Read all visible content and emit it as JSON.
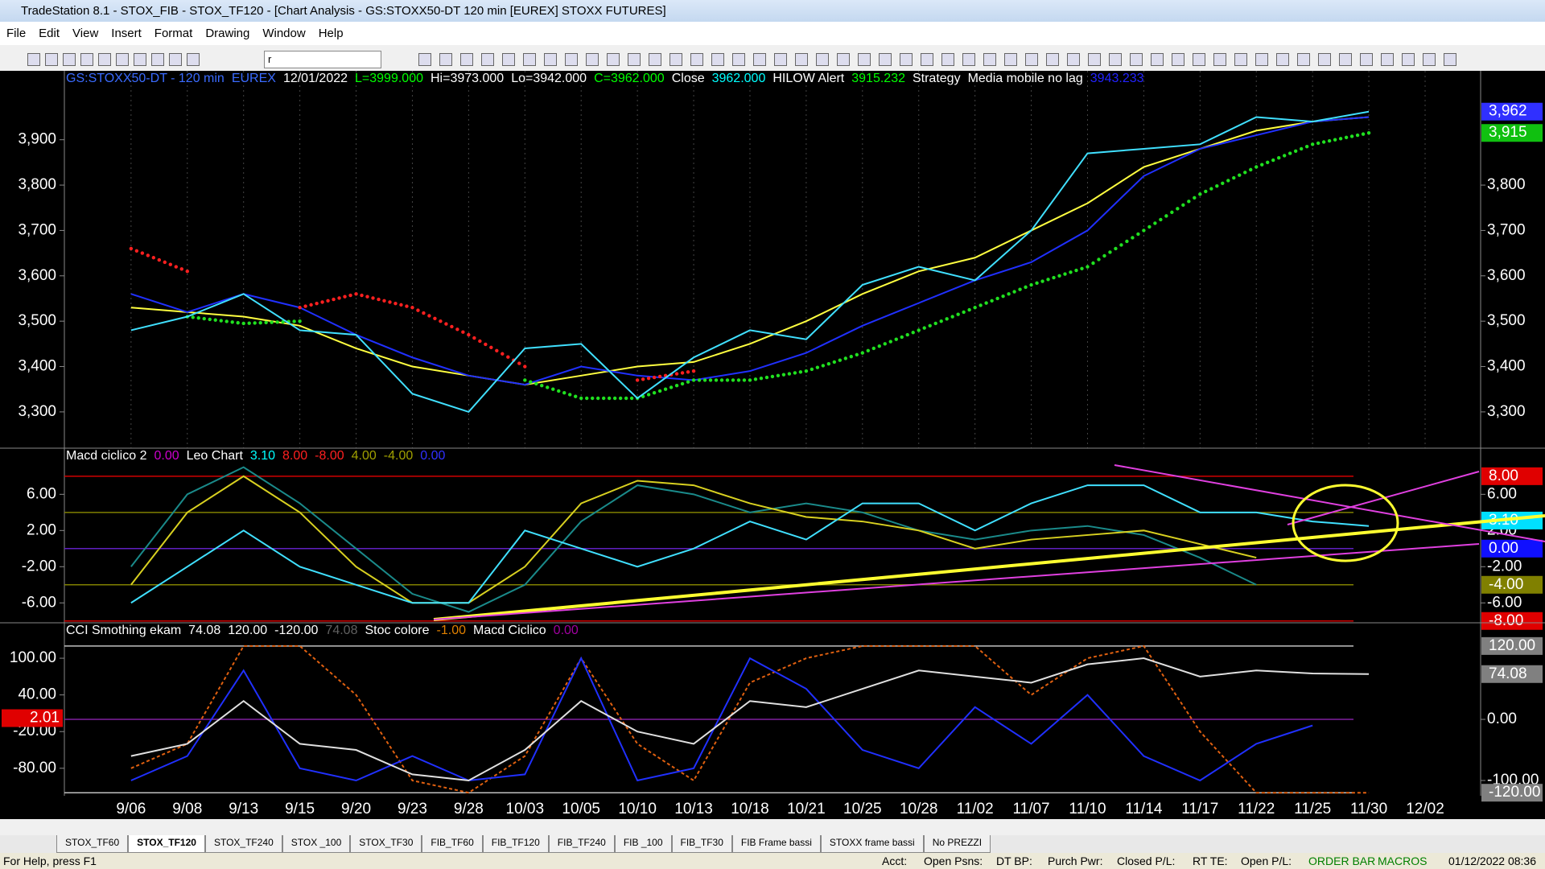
{
  "window": {
    "title": "TradeStation 8.1 - STOX_FIB - STOX_TF120 - [Chart Analysis - GS:STOXX50-DT  120 min  [EUREX] STOXX FUTURES]",
    "menu": [
      "File",
      "Edit",
      "View",
      "Insert",
      "Format",
      "Drawing",
      "Window",
      "Help"
    ],
    "symbol_box": "r"
  },
  "chart": {
    "categories": [
      "9/06",
      "9/08",
      "9/13",
      "9/15",
      "9/20",
      "9/23",
      "9/28",
      "10/03",
      "10/05",
      "10/10",
      "10/13",
      "10/18",
      "10/21",
      "10/25",
      "10/28",
      "11/02",
      "11/07",
      "11/10",
      "11/14",
      "11/17",
      "11/22",
      "11/25",
      "11/30",
      "12/02"
    ],
    "panels": [
      {
        "header": [
          {
            "text": "GS:STOXX50-DT - 120 min",
            "color": "#3a6bff"
          },
          {
            "text": "EUREX",
            "color": "#3a6bff"
          },
          {
            "text": "12/01/2022",
            "color": "#ffffff"
          },
          {
            "text": "L=3999.000",
            "color": "#00ff00"
          },
          {
            "text": "Hi=3973.000",
            "color": "#ffffff"
          },
          {
            "text": "Lo=3942.000",
            "color": "#ffffff"
          },
          {
            "text": "C=3962.000",
            "color": "#00ff00"
          },
          {
            "text": "Close",
            "color": "#ffffff"
          },
          {
            "text": "3962.000",
            "color": "#00ffff"
          },
          {
            "text": "HILOW Alert",
            "color": "#ffffff"
          },
          {
            "text": "3915.232",
            "color": "#00ff00"
          },
          {
            "text": "Strategy",
            "color": "#ffffff"
          },
          {
            "text": "Media mobile no lag",
            "color": "#ffffff"
          },
          {
            "text": "3943.233",
            "color": "#2222ff"
          }
        ],
        "ylim": [
          3220,
          4052
        ],
        "yticks": [
          {
            "value": 3300,
            "label": "3,300"
          },
          {
            "value": 3400,
            "label": "3,400"
          },
          {
            "value": 3500,
            "label": "3,500"
          },
          {
            "value": 3600,
            "label": "3,600"
          },
          {
            "value": 3700,
            "label": "3,700"
          },
          {
            "value": 3800,
            "label": "3,800"
          },
          {
            "value": 3900,
            "label": "3,900"
          }
        ],
        "y2ticks": [
          {
            "value": 3300,
            "label": "3,300"
          },
          {
            "value": 3400,
            "label": "3,400"
          },
          {
            "value": 3500,
            "label": "3,500"
          },
          {
            "value": 3600,
            "label": "3,600"
          },
          {
            "value": 3700,
            "label": "3,700"
          },
          {
            "value": 3800,
            "label": "3,800"
          }
        ],
        "tags": [
          {
            "value": 3962,
            "label": "3,962",
            "color": "#3030ff",
            "side": "right"
          },
          {
            "value": 3915,
            "label": "3,915",
            "color": "#10c010",
            "side": "right"
          }
        ],
        "levels": [],
        "series": [
          {
            "color": "#ffff40",
            "style": "line",
            "values": [
              3530,
              3520,
              3510,
              3490,
              3440,
              3400,
              3380,
              3360,
              3380,
              3400,
              3410,
              3450,
              3500,
              3560,
              3610,
              3640,
              3700,
              3760,
              3840,
              3880,
              3920,
              3940,
              3950,
              null
            ]
          },
          {
            "color": "#2030ff",
            "style": "line",
            "values": [
              3560,
              3520,
              3560,
              3530,
              3470,
              3420,
              3380,
              3360,
              3400,
              3380,
              3370,
              3390,
              3430,
              3490,
              3540,
              3590,
              3630,
              3700,
              3820,
              3880,
              3910,
              3940,
              3950,
              null
            ]
          },
          {
            "color": "#ff2020",
            "style": "dots",
            "values": [
              3660,
              3610,
              null,
              3530,
              3560,
              3530,
              3470,
              3400,
              null,
              3370,
              3390,
              null,
              null,
              null,
              null,
              null,
              null,
              null,
              null,
              null,
              null,
              null,
              null,
              null
            ]
          },
          {
            "color": "#20e020",
            "style": "dots",
            "values": [
              null,
              3510,
              3495,
              3500,
              null,
              null,
              null,
              3370,
              3330,
              3330,
              3370,
              3370,
              3390,
              3430,
              3480,
              3530,
              3580,
              3620,
              3700,
              3780,
              3840,
              3890,
              3915,
              null
            ]
          },
          {
            "color": "#40e0ff",
            "style": "line",
            "values": [
              3480,
              3510,
              3560,
              3480,
              3470,
              3340,
              3300,
              3440,
              3450,
              3330,
              3420,
              3480,
              3460,
              3580,
              3620,
              3590,
              3700,
              3870,
              3880,
              3890,
              3950,
              3940,
              3962,
              null
            ]
          }
        ]
      },
      {
        "header": [
          {
            "text": "Macd ciclico 2",
            "color": "#ffffff"
          },
          {
            "text": "0.00",
            "color": "#cc00cc"
          },
          {
            "text": "Leo Chart",
            "color": "#ffffff"
          },
          {
            "text": "3.10",
            "color": "#00ffff"
          },
          {
            "text": "8.00",
            "color": "#ff2020"
          },
          {
            "text": "-8.00",
            "color": "#ff2020"
          },
          {
            "text": "4.00",
            "color": "#a0a000"
          },
          {
            "text": "-4.00",
            "color": "#a0a000"
          },
          {
            "text": "0.00",
            "color": "#3030ff"
          }
        ],
        "ylim": [
          -8.2,
          11.1
        ],
        "yticks": [
          {
            "value": -6,
            "label": "-6.00"
          },
          {
            "value": -2,
            "label": "-2.00"
          },
          {
            "value": 2,
            "label": "2.00"
          },
          {
            "value": 6,
            "label": "6.00"
          }
        ],
        "y2ticks": [
          {
            "value": -6,
            "label": "-6.00"
          },
          {
            "value": -2,
            "label": "-2.00"
          },
          {
            "value": 2,
            "label": "2.00"
          },
          {
            "value": 6,
            "label": "6.00"
          }
        ],
        "tags": [
          {
            "value": 8,
            "label": "8.00",
            "color": "#e00000",
            "side": "right"
          },
          {
            "value": 3.1,
            "label": "3.10",
            "color": "#00e0ff",
            "side": "right"
          },
          {
            "value": 0,
            "label": "0.00",
            "color": "#1010ff",
            "side": "right"
          },
          {
            "value": -4,
            "label": "-4.00",
            "color": "#808000",
            "side": "right"
          },
          {
            "value": -8,
            "label": "-8.00",
            "color": "#e00000",
            "side": "right"
          }
        ],
        "levels": [
          {
            "value": 8,
            "color": "#d00000"
          },
          {
            "value": 4,
            "color": "#808000"
          },
          {
            "value": 0,
            "color": "#6020c0"
          },
          {
            "value": -4,
            "color": "#808000"
          },
          {
            "value": -8,
            "color": "#d00000"
          }
        ],
        "series": [
          {
            "color": "#1a8a8a",
            "style": "line",
            "values": [
              -2,
              6,
              9,
              5,
              0,
              -5,
              -7,
              -4,
              3,
              7,
              6,
              4,
              5,
              4,
              2,
              1,
              2,
              2.5,
              1.5,
              -1,
              -4,
              null,
              null,
              null
            ]
          },
          {
            "color": "#d8d020",
            "style": "line",
            "values": [
              -4,
              4,
              8,
              4,
              -2,
              -6,
              -6,
              -2,
              5,
              7.5,
              7,
              5,
              3.5,
              3,
              2,
              0,
              1,
              1.5,
              2,
              0.5,
              -1,
              null,
              null,
              null
            ]
          },
          {
            "color": "#40e0ff",
            "style": "line",
            "values": [
              -6,
              -2,
              2,
              -2,
              -4,
              -6,
              -6,
              2,
              0,
              -2,
              0,
              3,
              1,
              5,
              5,
              2,
              5,
              7,
              7,
              4,
              4,
              3,
              2.5,
              null
            ]
          }
        ]
      },
      {
        "header": [
          {
            "text": "CCI Smothing ekam",
            "color": "#ffffff"
          },
          {
            "text": "74.08",
            "color": "#ffffff"
          },
          {
            "text": "120.00",
            "color": "#ffffff"
          },
          {
            "text": "-120.00",
            "color": "#ffffff"
          },
          {
            "text": "74.08",
            "color": "#606060"
          },
          {
            "text": "Stoc colore",
            "color": "#ffffff"
          },
          {
            "text": "-1.00",
            "color": "#e08000"
          },
          {
            "text": "Macd Ciclico",
            "color": "#ffffff"
          },
          {
            "text": "0.00",
            "color": "#a000a0"
          }
        ],
        "ylim": [
          -125,
          158
        ],
        "yticks": [
          {
            "value": -80,
            "label": "-80.00"
          },
          {
            "value": -20,
            "label": "-20.00"
          },
          {
            "value": 40,
            "label": "40.00"
          },
          {
            "value": 100,
            "label": "100.00"
          }
        ],
        "y2ticks": [
          {
            "value": 0,
            "label": "0.00"
          },
          {
            "value": -100,
            "label": "-100.00"
          }
        ],
        "tags": [
          {
            "value": 120,
            "label": "120.00",
            "color": "#808080",
            "side": "right"
          },
          {
            "value": 74.08,
            "label": "74.08",
            "color": "#808080",
            "side": "right"
          },
          {
            "value": -120,
            "label": "-120.00",
            "color": "#808080",
            "side": "right"
          },
          {
            "value": 2.01,
            "label": "2.01",
            "color": "#e00000",
            "side": "left"
          }
        ],
        "levels": [
          {
            "value": 120,
            "color": "#c0c0c0"
          },
          {
            "value": 0,
            "color": "#8020a0"
          },
          {
            "value": -120,
            "color": "#c0c0c0"
          }
        ],
        "series": [
          {
            "color": "#e06010",
            "style": "dash",
            "values": [
              -80,
              -40,
              120,
              120,
              40,
              -100,
              -120,
              -60,
              100,
              -40,
              -100,
              60,
              100,
              120,
              120,
              120,
              40,
              100,
              120,
              -20,
              -120,
              -120,
              -120,
              null
            ]
          },
          {
            "color": "#2030ff",
            "style": "line",
            "values": [
              -100,
              -60,
              80,
              -80,
              -100,
              -60,
              -100,
              -90,
              100,
              -100,
              -80,
              100,
              50,
              -50,
              -80,
              20,
              -40,
              40,
              -60,
              -100,
              -40,
              -10,
              null,
              null
            ]
          },
          {
            "color": "#e0e0e0",
            "style": "line",
            "values": [
              -60,
              -40,
              30,
              -40,
              -50,
              -90,
              -100,
              -50,
              30,
              -20,
              -40,
              30,
              20,
              50,
              80,
              70,
              60,
              90,
              100,
              70,
              80,
              75,
              74.08,
              null
            ]
          }
        ]
      }
    ]
  },
  "tabs": [
    "STOX_TF60",
    "STOX_TF120",
    "STOX_TF240",
    "STOX _100",
    "STOX_TF30",
    "FIB_TF60",
    "FIB_TF120",
    "FIB_TF240",
    "FIB _100",
    "FIB_TF30",
    "FIB Frame bassi",
    "STOXX frame bassi",
    "No PREZZI"
  ],
  "status": [
    "For Help, press F1",
    "Acct:",
    "Open Psns:",
    "DT BP:",
    "Purch Pwr:",
    "Closed P/L:",
    "RT TE:",
    "Open P/L:",
    "ORDER BAR",
    "MACROS",
    "01/12/2022 08:36"
  ]
}
